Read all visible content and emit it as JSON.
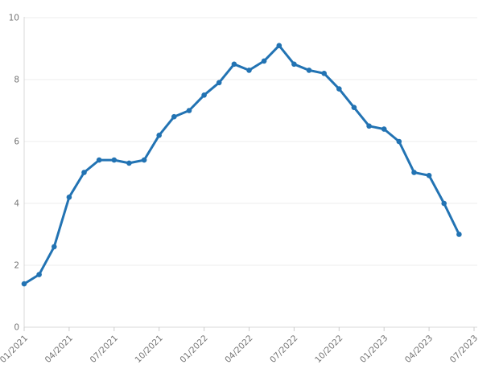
{
  "chart_data": {
    "type": "line",
    "title": "",
    "xlabel": "",
    "ylabel": "",
    "x": [
      "01/2021",
      "02/2021",
      "03/2021",
      "04/2021",
      "05/2021",
      "06/2021",
      "07/2021",
      "08/2021",
      "09/2021",
      "10/2021",
      "11/2021",
      "12/2021",
      "01/2022",
      "02/2022",
      "03/2022",
      "04/2022",
      "05/2022",
      "06/2022",
      "07/2022",
      "08/2022",
      "09/2022",
      "10/2022",
      "11/2022",
      "12/2022",
      "01/2023",
      "02/2023",
      "03/2023",
      "04/2023",
      "05/2023",
      "06/2023"
    ],
    "values": [
      1.4,
      1.7,
      2.6,
      4.2,
      5.0,
      5.4,
      5.4,
      5.3,
      5.4,
      6.2,
      6.8,
      7.0,
      7.5,
      7.9,
      8.5,
      8.3,
      8.6,
      9.1,
      8.5,
      8.3,
      8.2,
      7.7,
      7.1,
      6.5,
      6.4,
      6.0,
      5.0,
      4.9,
      4.0,
      3.0
    ],
    "x_tick_labels": [
      "01/2021",
      "04/2021",
      "07/2021",
      "10/2021",
      "01/2022",
      "04/2022",
      "07/2022",
      "10/2022",
      "01/2023",
      "04/2023",
      "07/2023"
    ],
    "x_tick_month_indices": [
      0,
      3,
      6,
      9,
      12,
      15,
      18,
      21,
      24,
      27,
      30
    ],
    "x_axis_span_months": 30,
    "y_ticks": [
      0,
      2,
      4,
      6,
      8,
      10
    ],
    "y_tick_labels": [
      "0",
      "2",
      "4",
      "6",
      "8",
      "10"
    ],
    "ylim": [
      0,
      10
    ],
    "grid": true,
    "legend_position": "none",
    "x_label_rotation_deg": -45,
    "marker": "circle"
  },
  "colors": {
    "series_line": "#2273b3",
    "marker_fill": "#2273b3",
    "gridline": "#ededed",
    "axis_line": "#d8d8d8",
    "tick_mark": "#cccccc",
    "tick_label": "#757575",
    "background": "#ffffff"
  }
}
